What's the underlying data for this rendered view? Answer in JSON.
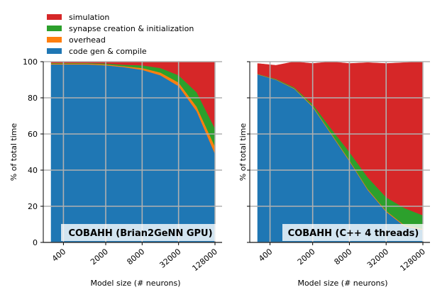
{
  "legend": [
    {
      "label": "simulation",
      "color": "#d62728"
    },
    {
      "label": "synapse creation & initialization",
      "color": "#2ca02c"
    },
    {
      "label": "overhead",
      "color": "#ff7f0e"
    },
    {
      "label": "code gen & compile",
      "color": "#1f77b4"
    }
  ],
  "chart_data": [
    {
      "type": "area",
      "stacked": true,
      "annotation": "COBAHH (Brian2GeNN GPU)",
      "xlabel": "Model size (# neurons)",
      "ylabel": "% of total time",
      "x_scale": "log",
      "x": [
        250,
        500,
        1000,
        2000,
        4000,
        8000,
        16000,
        32000,
        64000,
        128000
      ],
      "xticks": [
        "400",
        "2000",
        "8000",
        "32000",
        "128000"
      ],
      "yticks": [
        0,
        20,
        40,
        60,
        80,
        100
      ],
      "ylim": [
        0,
        100
      ],
      "grid": true,
      "series": [
        {
          "name": "code gen & compile",
          "values": [
            98.5,
            98.5,
            98.5,
            98,
            97,
            95.5,
            92.5,
            86.5,
            72.5,
            49
          ]
        },
        {
          "name": "overhead",
          "values": [
            0.5,
            0.5,
            0.5,
            0.5,
            0.5,
            1.0,
            1.5,
            2.0,
            2.5,
            4.0
          ]
        },
        {
          "name": "synapse creation & initialization",
          "values": [
            0.3,
            0.3,
            0.3,
            0.5,
            0.8,
            1.5,
            2.5,
            4.0,
            8.0,
            10.0
          ]
        },
        {
          "name": "simulation",
          "values": [
            0.7,
            0.7,
            0.7,
            1.0,
            1.7,
            2.0,
            3.5,
            7.5,
            17.0,
            37.0
          ]
        }
      ]
    },
    {
      "type": "area",
      "stacked": true,
      "annotation": "COBAHH (C++ 4 threads)",
      "xlabel": "Model size (# neurons)",
      "ylabel": "% of total time",
      "x_scale": "log",
      "x": [
        250,
        500,
        1000,
        2000,
        4000,
        8000,
        16000,
        32000,
        64000,
        128000
      ],
      "xticks": [
        "400",
        "2000",
        "8000",
        "32000",
        "128000"
      ],
      "yticks": [
        0,
        20,
        40,
        60,
        80,
        100
      ],
      "ylim": [
        0,
        100
      ],
      "grid": true,
      "series": [
        {
          "name": "code gen & compile",
          "values": [
            93,
            90,
            85,
            75,
            60,
            45,
            29,
            17,
            9,
            7
          ]
        },
        {
          "name": "overhead",
          "values": [
            0.2,
            0.2,
            0.3,
            0.5,
            0.5,
            0.5,
            0.5,
            0.5,
            0.5,
            0.5
          ]
        },
        {
          "name": "synapse creation & initialization",
          "values": [
            0.1,
            0.3,
            0.5,
            1.0,
            2.5,
            4.5,
            6.5,
            7.5,
            9.5,
            7.5
          ]
        },
        {
          "name": "simulation",
          "values": [
            5.7,
            7.5,
            14.2,
            22.5,
            37.0,
            49.0,
            63.5,
            74.0,
            80.5,
            85.0
          ]
        }
      ]
    }
  ]
}
